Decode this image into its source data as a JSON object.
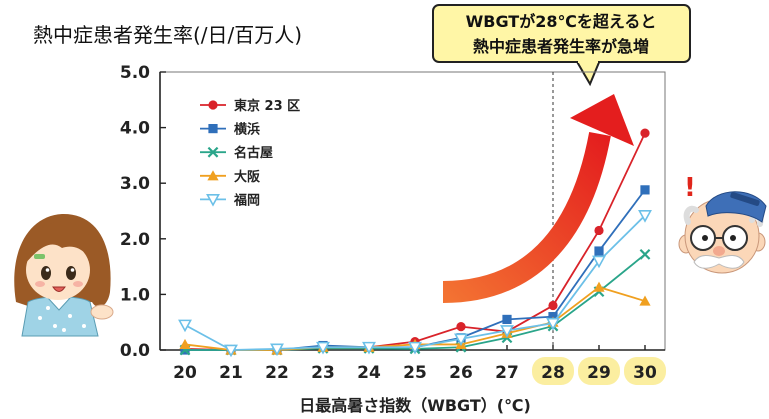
{
  "chart_data": {
    "type": "line",
    "title": "熱中症患者発生率(/日/百万人)",
    "xlabel": "日最高暑さ指数（WBGT）(℃)",
    "ylabel": "",
    "x": [
      20,
      21,
      22,
      23,
      24,
      25,
      26,
      27,
      28,
      29,
      30
    ],
    "xlim": [
      20,
      30
    ],
    "ylim": [
      0,
      5
    ],
    "yticks": [
      0,
      1,
      2,
      3,
      4,
      5
    ],
    "highlighted_x": [
      28,
      29,
      30
    ],
    "threshold_x": 28,
    "grid": false,
    "legend_position": "top-left",
    "annotation": {
      "lines": [
        "WBGTが28℃を超えると",
        "熱中症患者発生率が急増"
      ]
    },
    "series": [
      {
        "name": "東京 23 区",
        "color": "#d9232a",
        "marker": "circle",
        "values": [
          0.02,
          0.0,
          0.0,
          0.05,
          0.05,
          0.15,
          0.42,
          0.33,
          0.8,
          2.15,
          3.9
        ]
      },
      {
        "name": "横浜",
        "color": "#2f6fba",
        "marker": "square",
        "values": [
          0.0,
          0.0,
          0.0,
          0.08,
          0.05,
          0.05,
          0.22,
          0.55,
          0.6,
          1.78,
          2.88
        ]
      },
      {
        "name": "名古屋",
        "color": "#2aa58a",
        "marker": "x",
        "values": [
          0.0,
          0.0,
          0.0,
          0.03,
          0.03,
          0.02,
          0.05,
          0.22,
          0.43,
          1.05,
          1.72
        ]
      },
      {
        "name": "大阪",
        "color": "#f0a020",
        "marker": "triangle",
        "values": [
          0.1,
          0.0,
          0.0,
          0.05,
          0.05,
          0.1,
          0.1,
          0.3,
          0.5,
          1.13,
          0.88
        ]
      },
      {
        "name": "福岡",
        "color": "#6cc0e8",
        "marker": "triangle-down",
        "values": [
          0.45,
          0.0,
          0.02,
          0.05,
          0.05,
          0.05,
          0.2,
          0.35,
          0.48,
          1.6,
          2.42
        ]
      }
    ]
  },
  "illustration": {
    "exclamation": "!"
  },
  "colors": {
    "callout_fill": "#fff6a6",
    "highlight": "#fbeea0",
    "arrow_start": "#f37232",
    "arrow_end": "#e41e1e",
    "exclamation": "#e0251b"
  }
}
